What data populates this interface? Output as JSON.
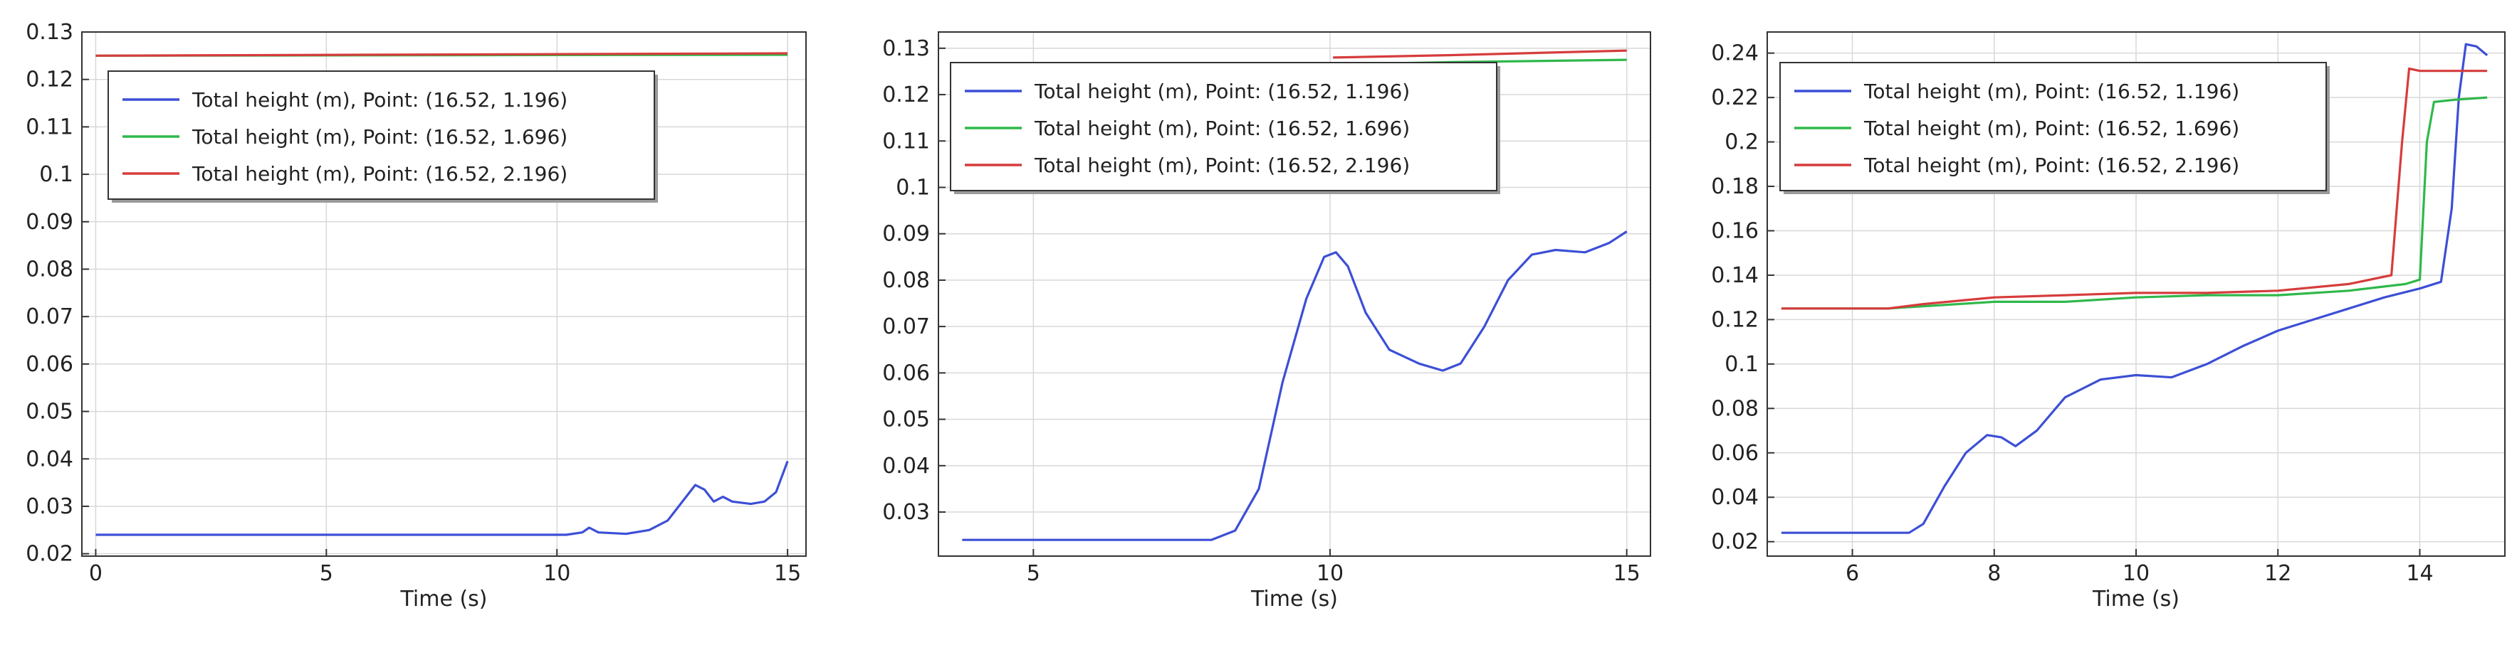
{
  "chart_data": [
    {
      "type": "line",
      "xlabel": "Time (s)",
      "ylabel": "",
      "xlim": [
        -0.3,
        15.4
      ],
      "ylim": [
        0.0195,
        0.13
      ],
      "xticks": [
        0,
        5,
        10,
        15
      ],
      "yticks": [
        0.02,
        0.03,
        0.04,
        0.05,
        0.06,
        0.07,
        0.08,
        0.09,
        0.1,
        0.11,
        0.12,
        0.13
      ],
      "ytick_labels": [
        "0.02",
        "0.03",
        "0.04",
        "0.05",
        "0.06",
        "0.07",
        "0.08",
        "0.09",
        "0.1",
        "0.11",
        "0.12",
        "0.13"
      ],
      "grid": true,
      "legend_position": "top-left",
      "series": [
        {
          "name": "Total height (m), Point: (16.52, 1.196)",
          "color": "#3c4fd6",
          "x": [
            0,
            10.2,
            10.55,
            10.7,
            10.9,
            11.5,
            12.0,
            12.4,
            12.8,
            13.0,
            13.2,
            13.4,
            13.6,
            13.8,
            14.2,
            14.5,
            14.75,
            15.0
          ],
          "y": [
            0.024,
            0.024,
            0.0245,
            0.0255,
            0.0245,
            0.0242,
            0.025,
            0.027,
            0.032,
            0.0345,
            0.0335,
            0.031,
            0.032,
            0.031,
            0.0305,
            0.031,
            0.033,
            0.0395
          ]
        },
        {
          "name": "Total height (m), Point: (16.52, 1.696)",
          "color": "#2fb84a",
          "x": [
            0,
            15.0
          ],
          "y": [
            0.125,
            0.1252
          ]
        },
        {
          "name": "Total height (m), Point: (16.52, 2.196)",
          "color": "#d63c3c",
          "x": [
            0,
            15.0
          ],
          "y": [
            0.125,
            0.1255
          ]
        }
      ]
    },
    {
      "type": "line",
      "xlabel": "Time (s)",
      "ylabel": "",
      "xlim": [
        3.4,
        15.4
      ],
      "ylim": [
        0.0205,
        0.1335
      ],
      "xticks": [
        5,
        10,
        15
      ],
      "yticks": [
        0.02,
        0.03,
        0.04,
        0.05,
        0.06,
        0.07,
        0.08,
        0.09,
        0.1,
        0.11,
        0.12,
        0.13
      ],
      "ytick_labels": [
        "0.02",
        "0.03",
        "0.04",
        "0.05",
        "0.06",
        "0.07",
        "0.08",
        "0.09",
        "0.1",
        "0.11",
        "0.12",
        "0.13"
      ],
      "grid": true,
      "legend_position": "top-left",
      "series": [
        {
          "name": "Total height (m), Point: (16.52, 1.196)",
          "color": "#3c4fd6",
          "x": [
            3.8,
            8.0,
            8.4,
            8.8,
            9.2,
            9.6,
            9.9,
            10.1,
            10.3,
            10.6,
            11.0,
            11.5,
            11.9,
            12.2,
            12.6,
            13.0,
            13.4,
            13.8,
            14.3,
            14.7,
            15.0
          ],
          "y": [
            0.024,
            0.024,
            0.026,
            0.035,
            0.058,
            0.076,
            0.085,
            0.086,
            0.083,
            0.073,
            0.065,
            0.062,
            0.0605,
            0.062,
            0.07,
            0.08,
            0.0855,
            0.0865,
            0.086,
            0.088,
            0.0905
          ]
        },
        {
          "name": "Total height (m), Point: (16.52, 1.696)",
          "color": "#2fb84a",
          "x": [
            10.05,
            12.0,
            15.0
          ],
          "y": [
            0.1265,
            0.127,
            0.1275
          ]
        },
        {
          "name": "Total height (m), Point: (16.52, 2.196)",
          "color": "#d63c3c",
          "x": [
            10.05,
            12.0,
            15.0
          ],
          "y": [
            0.128,
            0.1285,
            0.1295
          ]
        }
      ]
    },
    {
      "type": "line",
      "xlabel": "Time (s)",
      "ylabel": "",
      "xlim": [
        4.8,
        15.2
      ],
      "ylim": [
        0.0135,
        0.2495
      ],
      "xticks": [
        6,
        8,
        10,
        12,
        14
      ],
      "yticks": [
        0.02,
        0.04,
        0.06,
        0.08,
        0.1,
        0.12,
        0.14,
        0.16,
        0.18,
        0.2,
        0.22,
        0.24
      ],
      "ytick_labels": [
        "0.02",
        "0.04",
        "0.06",
        "0.08",
        "0.1",
        "0.12",
        "0.14",
        "0.16",
        "0.18",
        "0.2",
        "0.22",
        "0.24"
      ],
      "grid": true,
      "legend_position": "top-left",
      "series": [
        {
          "name": "Total height (m), Point: (16.52, 1.196)",
          "color": "#3c4fd6",
          "x": [
            5.0,
            6.8,
            7.0,
            7.3,
            7.6,
            7.9,
            8.1,
            8.3,
            8.6,
            9.0,
            9.5,
            10.0,
            10.5,
            11.0,
            11.5,
            12.0,
            12.5,
            13.0,
            13.5,
            14.0,
            14.3,
            14.45,
            14.55,
            14.65,
            14.8,
            14.95
          ],
          "y": [
            0.024,
            0.024,
            0.028,
            0.045,
            0.06,
            0.068,
            0.067,
            0.063,
            0.07,
            0.085,
            0.093,
            0.095,
            0.094,
            0.1,
            0.108,
            0.115,
            0.12,
            0.125,
            0.13,
            0.134,
            0.137,
            0.17,
            0.22,
            0.244,
            0.243,
            0.239
          ]
        },
        {
          "name": "Total height (m), Point: (16.52, 1.696)",
          "color": "#2fb84a",
          "x": [
            5.0,
            6.5,
            7.0,
            8.0,
            9.0,
            10.0,
            11.0,
            12.0,
            13.0,
            13.8,
            14.0,
            14.1,
            14.2,
            14.5,
            14.95
          ],
          "y": [
            0.125,
            0.125,
            0.126,
            0.128,
            0.128,
            0.13,
            0.131,
            0.131,
            0.133,
            0.136,
            0.138,
            0.2,
            0.218,
            0.219,
            0.22
          ]
        },
        {
          "name": "Total height (m), Point: (16.52, 2.196)",
          "color": "#d63c3c",
          "x": [
            5.0,
            6.5,
            7.0,
            8.0,
            9.0,
            10.0,
            11.0,
            12.0,
            13.0,
            13.6,
            13.75,
            13.85,
            14.0,
            14.5,
            14.95
          ],
          "y": [
            0.125,
            0.125,
            0.127,
            0.13,
            0.131,
            0.132,
            0.132,
            0.133,
            0.136,
            0.14,
            0.2,
            0.233,
            0.232,
            0.232,
            0.232
          ]
        }
      ]
    }
  ]
}
